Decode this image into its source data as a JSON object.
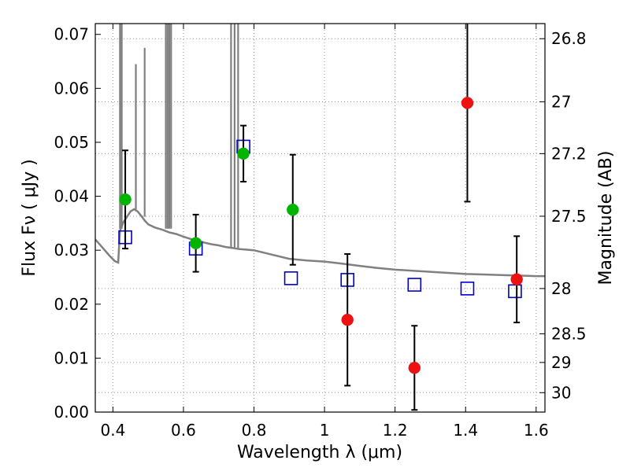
{
  "chart_data": {
    "type": "scatter",
    "xlabel": "Wavelength  λ (μm)",
    "ylabel": "Flux  Fν  ( μJy )",
    "y2label": "Magnitude (AB)",
    "xlim": [
      0.35,
      1.625
    ],
    "ylim": [
      0.0,
      0.072
    ],
    "grid": true,
    "x_ticks": [
      0.4,
      0.6,
      0.8,
      1.0,
      1.2,
      1.4,
      1.6
    ],
    "x_tick_labels": [
      "0.4",
      "0.6",
      "0.8",
      "1",
      "1.2",
      "1.4",
      "1.6"
    ],
    "y_ticks": [
      0.0,
      0.01,
      0.02,
      0.03,
      0.04,
      0.05,
      0.06,
      0.07
    ],
    "y_tick_labels": [
      "0.00",
      "0.01",
      "0.02",
      "0.03",
      "0.04",
      "0.05",
      "0.06",
      "0.07"
    ],
    "y2_ticks": [
      {
        "label": "26.8",
        "flux": 0.0692
      },
      {
        "label": "27",
        "flux": 0.0575
      },
      {
        "label": "27.2",
        "flux": 0.0479
      },
      {
        "label": "27.5",
        "flux": 0.0363
      },
      {
        "label": "28",
        "flux": 0.0229
      },
      {
        "label": "28.5",
        "flux": 0.0145
      },
      {
        "label": "29",
        "flux": 0.0092
      },
      {
        "label": "30",
        "flux": 0.0036
      }
    ],
    "colors": {
      "model": "#808080",
      "model_points": "#0000cc",
      "detections": "#00b400",
      "nondetections": "#ee1111",
      "errorbar": "#000000",
      "grid": "#999999"
    },
    "series": [
      {
        "marker": "line",
        "color": "#808080",
        "x": [
          0.35,
          0.37,
          0.39,
          0.405,
          0.415,
          0.42,
          0.43,
          0.44,
          0.45,
          0.46,
          0.47,
          0.48,
          0.49,
          0.5,
          0.52,
          0.54,
          0.56,
          0.58,
          0.6,
          0.62,
          0.64,
          0.66,
          0.68,
          0.7,
          0.72,
          0.74,
          0.76,
          0.78,
          0.8,
          0.85,
          0.9,
          0.95,
          1.0,
          1.05,
          1.1,
          1.15,
          1.2,
          1.25,
          1.3,
          1.35,
          1.4,
          1.45,
          1.5,
          1.55,
          1.6,
          1.625
        ],
        "y": [
          0.032,
          0.0305,
          0.029,
          0.028,
          0.0277,
          0.0336,
          0.0352,
          0.0362,
          0.0372,
          0.0376,
          0.0372,
          0.0364,
          0.0355,
          0.0348,
          0.0342,
          0.0338,
          0.0333,
          0.033,
          0.0325,
          0.0321,
          0.0318,
          0.0314,
          0.0311,
          0.0309,
          0.0306,
          0.0304,
          0.0302,
          0.0301,
          0.03,
          0.0292,
          0.0284,
          0.0281,
          0.0279,
          0.0275,
          0.0271,
          0.0267,
          0.0264,
          0.0262,
          0.026,
          0.0258,
          0.0256,
          0.0255,
          0.0254,
          0.0253,
          0.0252,
          0.0252
        ]
      },
      {
        "marker": "spike",
        "color": "#808080",
        "lines": [
          {
            "x": 0.42,
            "base": 0.034,
            "top": 0.072
          },
          {
            "x": 0.425,
            "base": 0.034,
            "top": 0.072
          },
          {
            "x": 0.465,
            "base": 0.0375,
            "top": 0.0645
          },
          {
            "x": 0.49,
            "base": 0.0362,
            "top": 0.0675
          },
          {
            "x": 0.55,
            "base": 0.034,
            "top": 0.072
          },
          {
            "x": 0.555,
            "base": 0.034,
            "top": 0.072
          },
          {
            "x": 0.56,
            "base": 0.034,
            "top": 0.072
          },
          {
            "x": 0.565,
            "base": 0.034,
            "top": 0.072
          },
          {
            "x": 0.735,
            "base": 0.0306,
            "top": 0.072
          },
          {
            "x": 0.745,
            "base": 0.0305,
            "top": 0.072
          },
          {
            "x": 0.755,
            "base": 0.0303,
            "top": 0.072
          }
        ]
      },
      {
        "marker": "open-square",
        "color": "#0000cc",
        "x": [
          0.435,
          0.635,
          0.77,
          0.905,
          1.065,
          1.255,
          1.405,
          1.54
        ],
        "y": [
          0.0324,
          0.0303,
          0.0492,
          0.0248,
          0.0245,
          0.0236,
          0.0229,
          0.0224
        ]
      },
      {
        "marker": "filled-circle",
        "color": "#00b400",
        "x": [
          0.435,
          0.635,
          0.77,
          0.91
        ],
        "y": [
          0.0394,
          0.0313,
          0.0479,
          0.0375
        ],
        "err": [
          0.0091,
          0.0053,
          0.0052,
          0.0102
        ]
      },
      {
        "marker": "filled-circle",
        "color": "#ee1111",
        "x": [
          1.065,
          1.255,
          1.405,
          1.545
        ],
        "y": [
          0.0171,
          0.0082,
          0.0573,
          0.0246
        ],
        "err": [
          0.0122,
          0.0078,
          0.0183,
          0.008
        ]
      }
    ]
  }
}
